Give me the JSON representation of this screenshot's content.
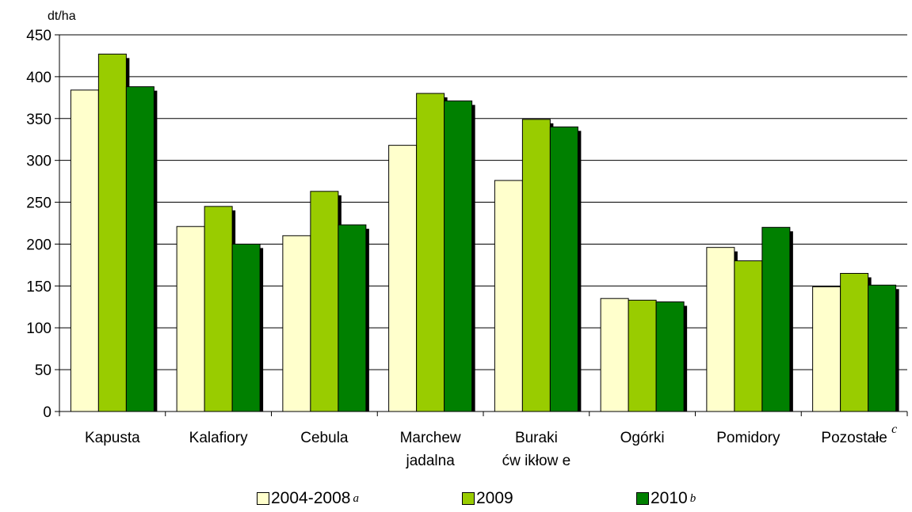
{
  "chart_data": {
    "type": "bar",
    "unit_label": "dt/ha",
    "categories": [
      [
        "Kapusta"
      ],
      [
        "Kalafiory"
      ],
      [
        "Cebula"
      ],
      [
        "Marchew",
        "jadalna"
      ],
      [
        "Buraki",
        "ćw ikłow e"
      ],
      [
        "Ogórki"
      ],
      [
        "Pomidory"
      ],
      [
        "Pozostałe"
      ]
    ],
    "category_superscripts": [
      "",
      "",
      "",
      "",
      "",
      "",
      "",
      "c"
    ],
    "series": [
      {
        "name": "2004-2008",
        "superscript": "a",
        "color": "#ffffcc",
        "values": [
          384,
          221,
          210,
          318,
          276,
          135,
          196,
          149
        ]
      },
      {
        "name": "2009",
        "superscript": "",
        "color": "#99cc00",
        "values": [
          427,
          245,
          263,
          380,
          349,
          133,
          180,
          165
        ]
      },
      {
        "name": "2010",
        "superscript": "b",
        "color": "#008000",
        "values": [
          388,
          200,
          223,
          371,
          340,
          131,
          220,
          151
        ]
      }
    ],
    "ylim": [
      0,
      450
    ],
    "yticks": [
      0,
      50,
      100,
      150,
      200,
      250,
      300,
      350,
      400,
      450
    ],
    "grid": true,
    "legend_position": "bottom"
  }
}
